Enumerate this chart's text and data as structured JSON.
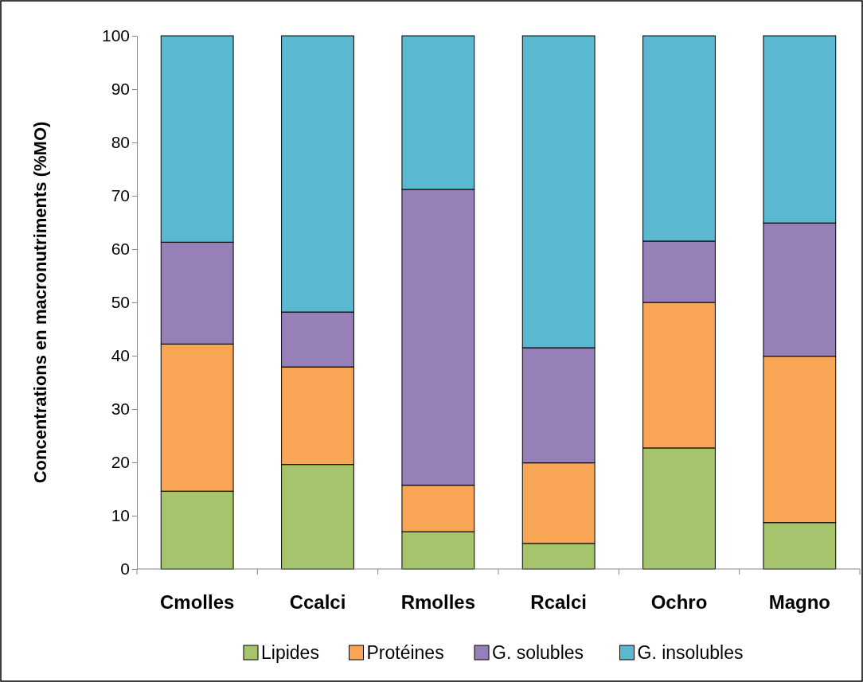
{
  "chart_data": {
    "type": "bar",
    "stacked": true,
    "ylabel": "Concentrations en macronutriments (%MO)",
    "categories": [
      "Cmolles",
      "Ccalci",
      "Rmolles",
      "Rcalci",
      "Ochro",
      "Magno"
    ],
    "series": [
      {
        "name": "Lipides",
        "color": "#a5c46c",
        "values": [
          14.6,
          19.6,
          7.0,
          4.8,
          22.7,
          8.7
        ]
      },
      {
        "name": "Protéines",
        "color": "#f9a556",
        "values": [
          27.6,
          18.3,
          8.7,
          15.1,
          27.3,
          31.2
        ]
      },
      {
        "name": "G. solubles",
        "color": "#9680b7",
        "values": [
          19.1,
          10.3,
          55.5,
          21.6,
          11.5,
          25.0
        ]
      },
      {
        "name": "G. insolubles",
        "color": "#5ab9d0",
        "values": [
          38.7,
          51.8,
          28.8,
          58.5,
          38.5,
          35.1
        ]
      }
    ],
    "ylim": [
      0,
      100
    ],
    "yticks": [
      0,
      10,
      20,
      30,
      40,
      50,
      60,
      70,
      80,
      90,
      100
    ],
    "grid": false,
    "legend": "bottom"
  }
}
